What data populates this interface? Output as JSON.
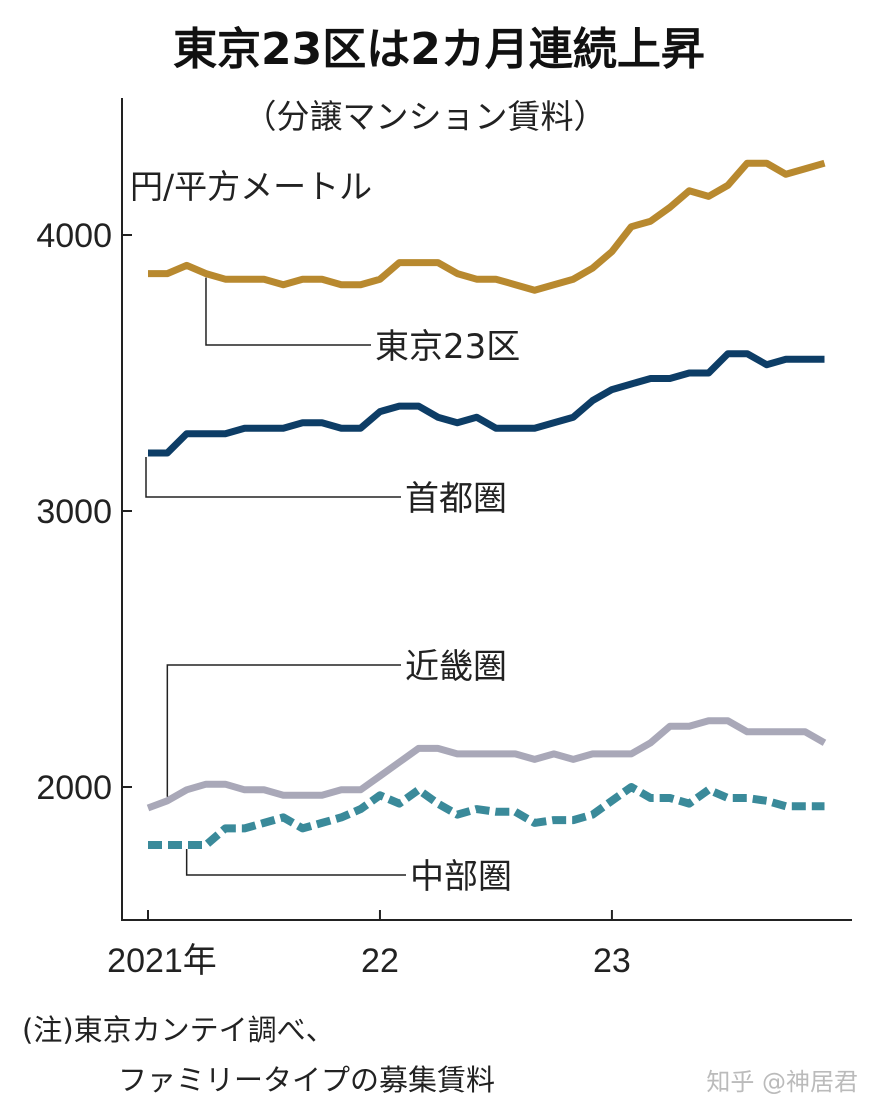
{
  "chart_data": {
    "type": "line",
    "title": "東京23区は2カ月連続上昇",
    "subtitle": "（分譲マンション賃料）",
    "ylabel": "円/平方メートル",
    "ylim": [
      1520,
      4480
    ],
    "yticks": [
      2000,
      3000,
      4000
    ],
    "ytick_labels": [
      "2000",
      "3000",
      "4000"
    ],
    "x_start": "2021-01",
    "x_end": "2023-12",
    "xticks": [
      "2021-01",
      "2022-01",
      "2023-01"
    ],
    "xtick_labels": [
      "2021年",
      "22",
      "23"
    ],
    "grid": false,
    "series": [
      {
        "name": "東京23区",
        "color": "#b8892f",
        "dashed": false,
        "values": [
          3860,
          3860,
          3890,
          3860,
          3840,
          3840,
          3840,
          3820,
          3840,
          3840,
          3820,
          3820,
          3840,
          3900,
          3900,
          3900,
          3860,
          3840,
          3840,
          3820,
          3800,
          3820,
          3840,
          3880,
          3940,
          4030,
          4050,
          4100,
          4160,
          4140,
          4180,
          4260,
          4260,
          4220,
          4240,
          4260
        ]
      },
      {
        "name": "首都圏",
        "color": "#0d3d66",
        "dashed": false,
        "values": [
          3210,
          3210,
          3280,
          3280,
          3280,
          3300,
          3300,
          3300,
          3320,
          3320,
          3300,
          3300,
          3360,
          3380,
          3380,
          3340,
          3320,
          3340,
          3300,
          3300,
          3300,
          3320,
          3340,
          3400,
          3440,
          3460,
          3480,
          3480,
          3500,
          3500,
          3570,
          3570,
          3530,
          3550,
          3550,
          3550
        ]
      },
      {
        "name": "近畿圏",
        "color": "#a9a8b8",
        "dashed": false,
        "values": [
          1924,
          1950,
          1990,
          2010,
          2010,
          1990,
          1990,
          1970,
          1970,
          1970,
          1990,
          1990,
          2040,
          2090,
          2140,
          2140,
          2120,
          2120,
          2120,
          2120,
          2100,
          2120,
          2100,
          2120,
          2120,
          2120,
          2160,
          2220,
          2220,
          2240,
          2240,
          2200,
          2200,
          2200,
          2200,
          2160
        ]
      },
      {
        "name": "中部圏",
        "color": "#3a8a9a",
        "dashed": true,
        "values": [
          1790,
          1790,
          1790,
          1790,
          1850,
          1850,
          1870,
          1890,
          1850,
          1870,
          1890,
          1920,
          1970,
          1940,
          1990,
          1940,
          1900,
          1920,
          1910,
          1910,
          1870,
          1880,
          1880,
          1900,
          1950,
          2000,
          1960,
          1960,
          1940,
          1990,
          1960,
          1960,
          1950,
          1930,
          1930,
          1930
        ]
      }
    ]
  },
  "notes": [
    "(注)東京カンテイ調べ、",
    "ファミリータイプの募集賃料"
  ],
  "watermark": "知乎 @神居君"
}
